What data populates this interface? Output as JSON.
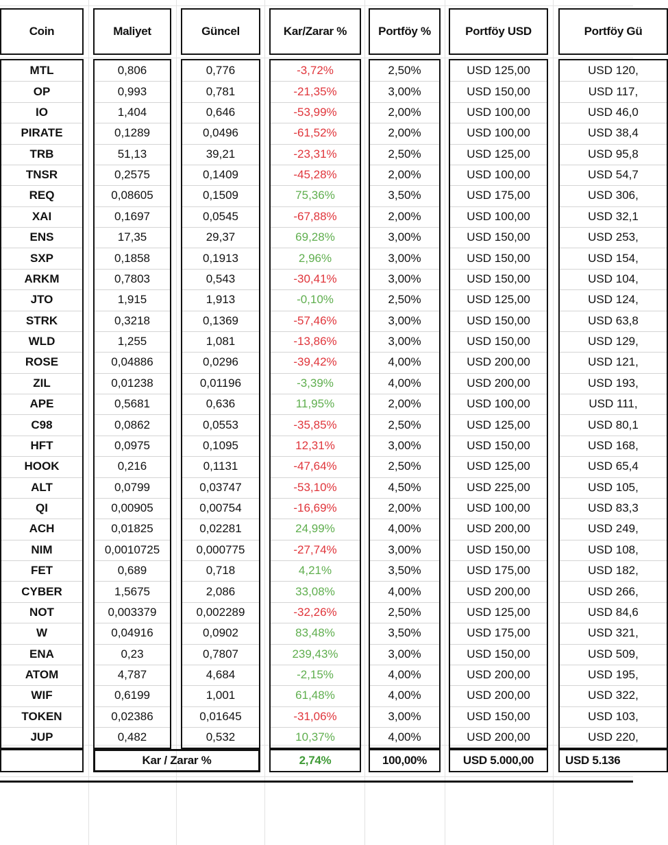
{
  "header": [
    "Coin",
    "Maliyet",
    "Güncel",
    "Kar/Zarar %",
    "Portföy %",
    "Portföy USD",
    "Portföy Gü"
  ],
  "rows": [
    [
      "MTL",
      "0,806",
      "0,776",
      "-3,72%",
      "2,50%",
      "USD 125,00",
      "USD 120,"
    ],
    [
      "OP",
      "0,993",
      "0,781",
      "-21,35%",
      "3,00%",
      "USD 150,00",
      "USD 117,"
    ],
    [
      "IO",
      "1,404",
      "0,646",
      "-53,99%",
      "2,00%",
      "USD 100,00",
      "USD 46,0"
    ],
    [
      "PIRATE",
      "0,1289",
      "0,0496",
      "-61,52%",
      "2,00%",
      "USD 100,00",
      "USD 38,4"
    ],
    [
      "TRB",
      "51,13",
      "39,21",
      "-23,31%",
      "2,50%",
      "USD 125,00",
      "USD 95,8"
    ],
    [
      "TNSR",
      "0,2575",
      "0,1409",
      "-45,28%",
      "2,00%",
      "USD 100,00",
      "USD 54,7"
    ],
    [
      "REQ",
      "0,08605",
      "0,1509",
      "75,36%",
      "3,50%",
      "USD 175,00",
      "USD 306,"
    ],
    [
      "XAI",
      "0,1697",
      "0,0545",
      "-67,88%",
      "2,00%",
      "USD 100,00",
      "USD 32,1"
    ],
    [
      "ENS",
      "17,35",
      "29,37",
      "69,28%",
      "3,00%",
      "USD 150,00",
      "USD 253,"
    ],
    [
      "SXP",
      "0,1858",
      "0,1913",
      "2,96%",
      "3,00%",
      "USD 150,00",
      "USD 154,"
    ],
    [
      "ARKM",
      "0,7803",
      "0,543",
      "-30,41%",
      "3,00%",
      "USD 150,00",
      "USD 104,"
    ],
    [
      "JTO",
      "1,915",
      "1,913",
      "-0,10%",
      "2,50%",
      "USD 125,00",
      "USD 124,"
    ],
    [
      "STRK",
      "0,3218",
      "0,1369",
      "-57,46%",
      "3,00%",
      "USD 150,00",
      "USD 63,8"
    ],
    [
      "WLD",
      "1,255",
      "1,081",
      "-13,86%",
      "3,00%",
      "USD 150,00",
      "USD 129,"
    ],
    [
      "ROSE",
      "0,04886",
      "0,0296",
      "-39,42%",
      "4,00%",
      "USD 200,00",
      "USD 121,"
    ],
    [
      "ZIL",
      "0,01238",
      "0,01196",
      "-3,39%",
      "4,00%",
      "USD 200,00",
      "USD 193,"
    ],
    [
      "APE",
      "0,5681",
      "0,636",
      "11,95%",
      "2,00%",
      "USD 100,00",
      "USD 111,"
    ],
    [
      "C98",
      "0,0862",
      "0,0553",
      "-35,85%",
      "2,50%",
      "USD 125,00",
      "USD 80,1"
    ],
    [
      "HFT",
      "0,0975",
      "0,1095",
      "12,31%",
      "3,00%",
      "USD 150,00",
      "USD 168,"
    ],
    [
      "HOOK",
      "0,216",
      "0,1131",
      "-47,64%",
      "2,50%",
      "USD 125,00",
      "USD 65,4"
    ],
    [
      "ALT",
      "0,0799",
      "0,03747",
      "-53,10%",
      "4,50%",
      "USD 225,00",
      "USD 105,"
    ],
    [
      "QI",
      "0,00905",
      "0,00754",
      "-16,69%",
      "2,00%",
      "USD 100,00",
      "USD 83,3"
    ],
    [
      "ACH",
      "0,01825",
      "0,02281",
      "24,99%",
      "4,00%",
      "USD 200,00",
      "USD 249,"
    ],
    [
      "NIM",
      "0,0010725",
      "0,000775",
      "-27,74%",
      "3,00%",
      "USD 150,00",
      "USD 108,"
    ],
    [
      "FET",
      "0,689",
      "0,718",
      "4,21%",
      "3,50%",
      "USD 175,00",
      "USD 182,"
    ],
    [
      "CYBER",
      "1,5675",
      "2,086",
      "33,08%",
      "4,00%",
      "USD 200,00",
      "USD 266,"
    ],
    [
      "NOT",
      "0,003379",
      "0,002289",
      "-32,26%",
      "2,50%",
      "USD 125,00",
      "USD 84,6"
    ],
    [
      "W",
      "0,04916",
      "0,0902",
      "83,48%",
      "3,50%",
      "USD 175,00",
      "USD 321,"
    ],
    [
      "ENA",
      "0,23",
      "0,7807",
      "239,43%",
      "3,00%",
      "USD 150,00",
      "USD 509,"
    ],
    [
      "ATOM",
      "4,787",
      "4,684",
      "-2,15%",
      "4,00%",
      "USD 200,00",
      "USD 195,"
    ],
    [
      "WIF",
      "0,6199",
      "1,001",
      "61,48%",
      "4,00%",
      "USD 200,00",
      "USD 322,"
    ],
    [
      "TOKEN",
      "0,02386",
      "0,01645",
      "-31,06%",
      "3,00%",
      "USD 150,00",
      "USD 103,"
    ],
    [
      "JUP",
      "0,482",
      "0,532",
      "10,37%",
      "4,00%",
      "USD 200,00",
      "USD 220,"
    ]
  ],
  "pnl_colors": [
    "#e0353b",
    "#e0353b",
    "#e0353b",
    "#e0353b",
    "#e0353b",
    "#e0353b",
    "#5fae4e",
    "#e0353b",
    "#5fae4e",
    "#5fae4e",
    "#e0353b",
    "#5fae4e",
    "#e0353b",
    "#e0353b",
    "#e0353b",
    "#5fae4e",
    "#5fae4e",
    "#e0353b",
    "#e0353b",
    "#e0353b",
    "#e0353b",
    "#e0353b",
    "#5fae4e",
    "#e0353b",
    "#5fae4e",
    "#5fae4e",
    "#e0353b",
    "#5fae4e",
    "#5fae4e",
    "#5fae4e",
    "#5fae4e",
    "#e0353b",
    "#5fae4e"
  ],
  "footer": {
    "label": "Kar / Zarar %",
    "pnl": "2,74%",
    "pnl_color": "#3f9a36",
    "portfolio_pct": "100,00%",
    "portfolio_usd": "USD 5.000,00",
    "current": "USD 5.136"
  }
}
